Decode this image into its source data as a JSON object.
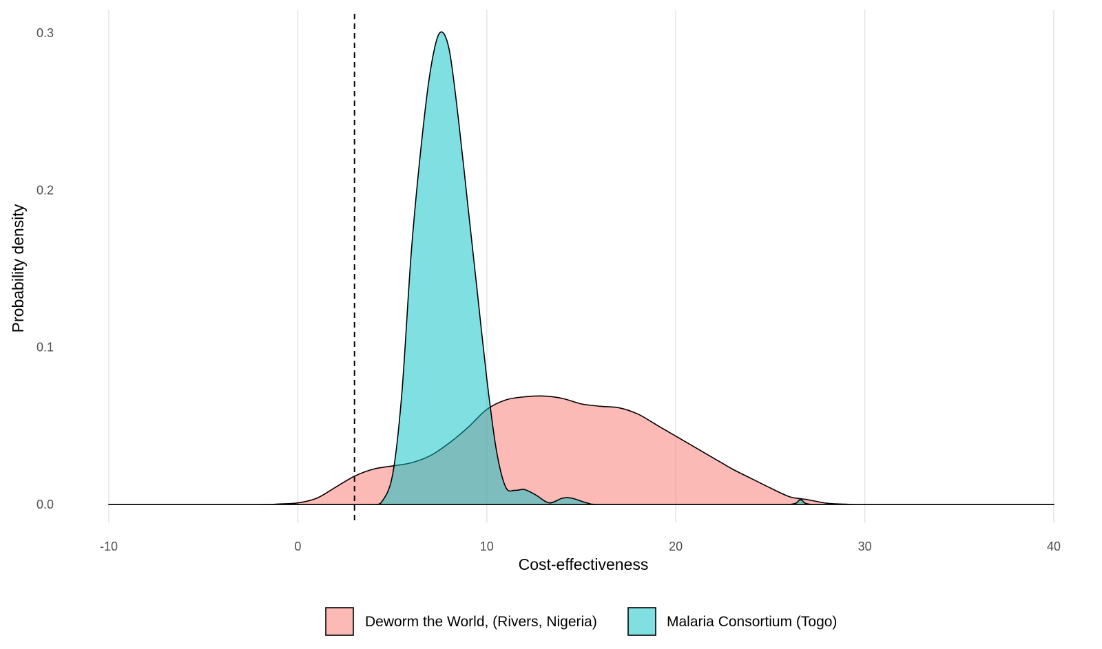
{
  "chart_data": {
    "type": "area",
    "subtype": "density",
    "title": "",
    "xlabel": "Cost-effectiveness",
    "ylabel": "Probability density",
    "xlim": [
      -10,
      40
    ],
    "ylim": [
      0,
      0.3
    ],
    "x_ticks": [
      "-10",
      "0",
      "10",
      "20",
      "30",
      "40"
    ],
    "y_ticks": [
      "0.0",
      "0.1",
      "0.2",
      "0.3"
    ],
    "grid": "vertical major lines only",
    "reference_line": {
      "x": 3,
      "style": "dashed",
      "color": "#000000"
    },
    "legend_position": "bottom",
    "series": [
      {
        "name": "Deworm the World, (Rivers, Nigeria)",
        "color": "#F8766D",
        "points": [
          [
            -10,
            0
          ],
          [
            -2,
            0
          ],
          [
            -1,
            0.0003
          ],
          [
            0,
            0.001
          ],
          [
            1,
            0.004
          ],
          [
            2,
            0.011
          ],
          [
            3,
            0.018
          ],
          [
            4,
            0.0225
          ],
          [
            5,
            0.0245
          ],
          [
            6,
            0.0265
          ],
          [
            7,
            0.031
          ],
          [
            8,
            0.039
          ],
          [
            9,
            0.049
          ],
          [
            10,
            0.0605
          ],
          [
            11,
            0.0665
          ],
          [
            12,
            0.0685
          ],
          [
            13,
            0.069
          ],
          [
            14,
            0.0675
          ],
          [
            15,
            0.064
          ],
          [
            16,
            0.0625
          ],
          [
            17,
            0.0615
          ],
          [
            18,
            0.0575
          ],
          [
            19,
            0.0505
          ],
          [
            20,
            0.0435
          ],
          [
            21,
            0.0365
          ],
          [
            22,
            0.0295
          ],
          [
            23,
            0.0225
          ],
          [
            24,
            0.0165
          ],
          [
            25,
            0.0105
          ],
          [
            26,
            0.005
          ],
          [
            26.7,
            0.0035
          ],
          [
            27,
            0.003
          ],
          [
            28,
            0.0008
          ],
          [
            29,
            0.0002
          ],
          [
            30,
            0
          ],
          [
            40,
            0
          ]
        ]
      },
      {
        "name": "Malaria Consortium (Togo)",
        "color": "#00BFC4",
        "points": [
          [
            -10,
            0
          ],
          [
            4,
            0
          ],
          [
            4.4,
            0.001
          ],
          [
            5,
            0.018
          ],
          [
            5.5,
            0.07
          ],
          [
            6,
            0.16
          ],
          [
            6.5,
            0.225
          ],
          [
            7,
            0.275
          ],
          [
            7.5,
            0.3
          ],
          [
            8,
            0.29
          ],
          [
            8.5,
            0.245
          ],
          [
            9,
            0.19
          ],
          [
            9.5,
            0.135
          ],
          [
            10,
            0.08
          ],
          [
            10.5,
            0.035
          ],
          [
            11,
            0.011
          ],
          [
            11.5,
            0.009
          ],
          [
            12,
            0.0095
          ],
          [
            12.6,
            0.006
          ],
          [
            13.3,
            0.001
          ],
          [
            14,
            0.004
          ],
          [
            14.5,
            0.004
          ],
          [
            15.3,
            0.001
          ],
          [
            16,
            0
          ],
          [
            26,
            0
          ],
          [
            26.6,
            0.003
          ],
          [
            27.2,
            0
          ],
          [
            40,
            0
          ]
        ]
      }
    ]
  }
}
